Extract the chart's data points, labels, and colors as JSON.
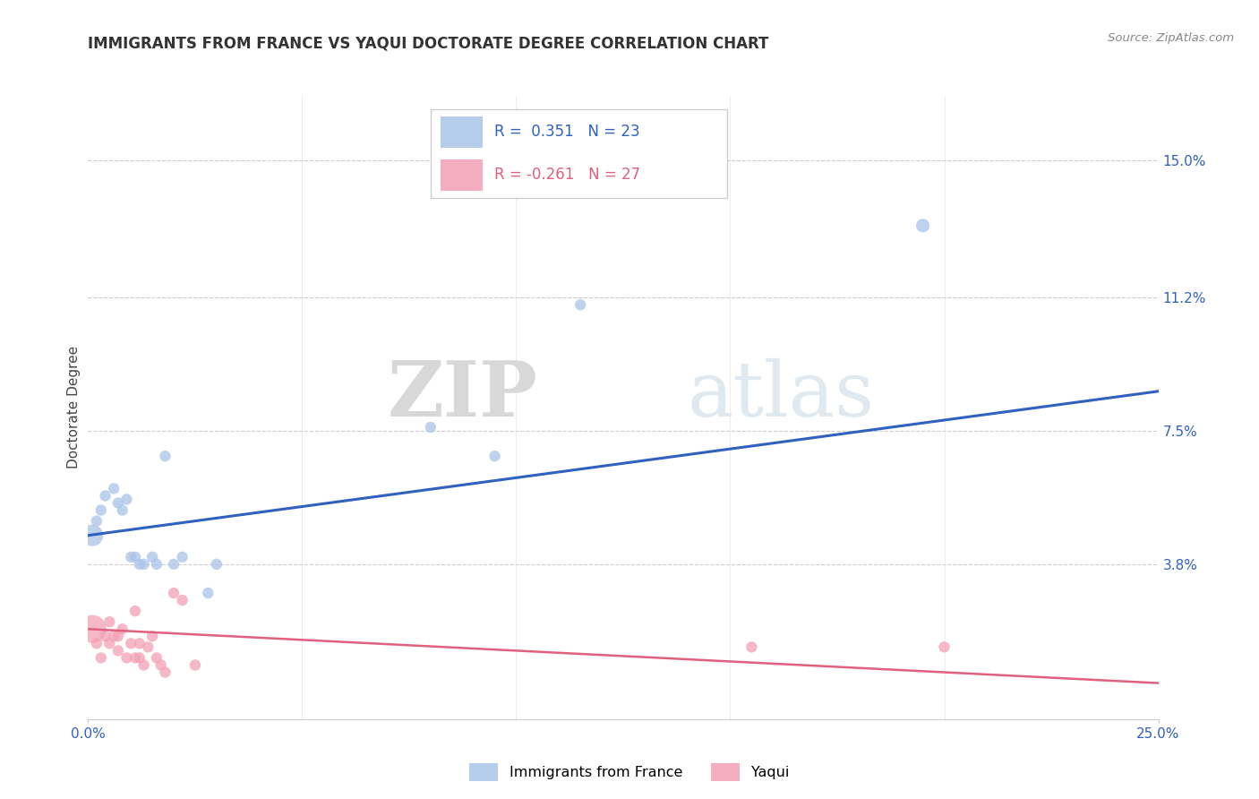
{
  "title": "IMMIGRANTS FROM FRANCE VS YAQUI DOCTORATE DEGREE CORRELATION CHART",
  "source": "Source: ZipAtlas.com",
  "ylabel": "Doctorate Degree",
  "xlim": [
    0.0,
    0.25
  ],
  "ylim": [
    -0.005,
    0.168
  ],
  "ytick_labels": [
    "3.8%",
    "7.5%",
    "11.2%",
    "15.0%"
  ],
  "ytick_values": [
    0.038,
    0.075,
    0.112,
    0.15
  ],
  "xtick_labels": [
    "0.0%",
    "25.0%"
  ],
  "xtick_values": [
    0.0,
    0.25
  ],
  "legend_r1": "R =  0.351   N = 23",
  "legend_r2": "R = -0.261   N = 27",
  "blue_scatter_x": [
    0.001,
    0.002,
    0.003,
    0.004,
    0.006,
    0.007,
    0.008,
    0.009,
    0.01,
    0.011,
    0.012,
    0.013,
    0.015,
    0.016,
    0.018,
    0.02,
    0.022,
    0.028,
    0.03,
    0.08,
    0.095,
    0.115,
    0.195
  ],
  "blue_scatter_y": [
    0.046,
    0.05,
    0.053,
    0.057,
    0.059,
    0.055,
    0.053,
    0.056,
    0.04,
    0.04,
    0.038,
    0.038,
    0.04,
    0.038,
    0.068,
    0.038,
    0.04,
    0.03,
    0.038,
    0.076,
    0.068,
    0.11,
    0.132
  ],
  "blue_scatter_size": [
    300,
    80,
    80,
    80,
    80,
    80,
    80,
    80,
    80,
    80,
    80,
    80,
    80,
    80,
    80,
    80,
    80,
    80,
    80,
    80,
    80,
    80,
    120
  ],
  "pink_scatter_x": [
    0.001,
    0.002,
    0.003,
    0.004,
    0.005,
    0.005,
    0.006,
    0.007,
    0.007,
    0.008,
    0.009,
    0.01,
    0.011,
    0.011,
    0.012,
    0.012,
    0.013,
    0.014,
    0.015,
    0.016,
    0.017,
    0.018,
    0.02,
    0.022,
    0.025,
    0.155,
    0.2
  ],
  "pink_scatter_size": [
    500,
    80,
    80,
    80,
    80,
    80,
    80,
    80,
    80,
    80,
    80,
    80,
    80,
    80,
    80,
    80,
    80,
    80,
    80,
    80,
    80,
    80,
    80,
    80,
    80,
    80,
    80
  ],
  "pink_scatter_y": [
    0.02,
    0.016,
    0.012,
    0.018,
    0.022,
    0.016,
    0.018,
    0.014,
    0.018,
    0.02,
    0.012,
    0.016,
    0.012,
    0.025,
    0.012,
    0.016,
    0.01,
    0.015,
    0.018,
    0.012,
    0.01,
    0.008,
    0.03,
    0.028,
    0.01,
    0.015,
    0.015
  ],
  "blue_line_x": [
    0.0,
    0.25
  ],
  "blue_line_y": [
    0.046,
    0.086
  ],
  "pink_line_x": [
    0.0,
    0.25
  ],
  "pink_line_y": [
    0.02,
    0.005
  ],
  "blue_color": "#aac4e8",
  "pink_color": "#f4a0b5",
  "blue_line_color": "#3060c0",
  "pink_line_color": "#e06080",
  "watermark_zip": "ZIP",
  "watermark_atlas": "atlas",
  "grid_color": "#cccccc",
  "background_color": "#ffffff",
  "title_fontsize": 12,
  "axis_label_fontsize": 11,
  "tick_fontsize": 11,
  "legend_fontsize": 12
}
